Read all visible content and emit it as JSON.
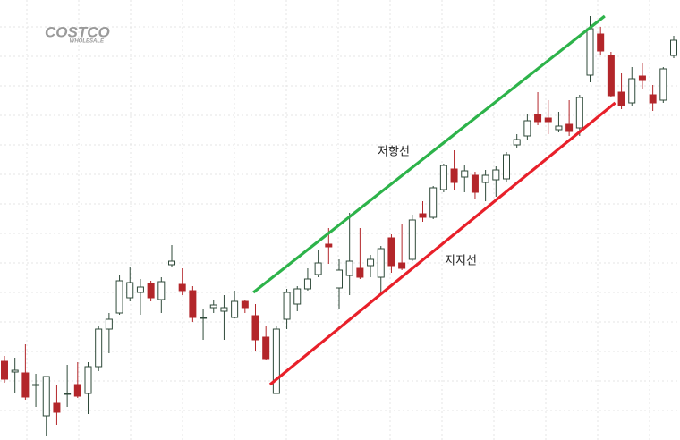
{
  "logo": {
    "name": "COSTCO",
    "tagline": "WHOLESALE"
  },
  "chart_data": {
    "type": "candlestick",
    "up_color": "#ffffff",
    "up_stroke": "#2f4a3a",
    "down_color": "#b3262a",
    "ylim": [
      0,
      492
    ],
    "grid": true,
    "open": [
      88,
      76,
      75,
      61,
      27,
      41,
      51,
      62,
      52,
      82,
      124,
      142,
      159,
      165,
      175,
      157,
      196,
      174,
      167,
      136,
      148,
      144,
      137,
      155,
      139,
      115,
      52,
      135,
      152,
      169,
      185,
      219,
      170,
      184,
      192,
      195,
      182,
      226,
      198,
      202,
      253,
      249,
      280,
      303,
      294,
      296,
      288,
      291,
      292,
      330,
      340,
      364,
      360,
      347,
      353,
      349,
      408,
      454,
      430,
      389,
      377,
      407,
      386,
      380,
      430
    ],
    "high": [
      94,
      92,
      107,
      74,
      71,
      62,
      84,
      87,
      87,
      127,
      142,
      184,
      194,
      180,
      178,
      182,
      218,
      192,
      172,
      147,
      156,
      162,
      167,
      157,
      152,
      127,
      127,
      169,
      172,
      192,
      212,
      237,
      202,
      254,
      237,
      207,
      217,
      230,
      242,
      252,
      267,
      284,
      309,
      324,
      307,
      300,
      302,
      306,
      322,
      342,
      364,
      389,
      380,
      367,
      380,
      386,
      474,
      462,
      434,
      410,
      417,
      422,
      397,
      417,
      452
    ],
    "low": [
      64,
      52,
      45,
      37,
      5,
      17,
      37,
      47,
      29,
      77,
      97,
      140,
      155,
      140,
      155,
      142,
      194,
      162,
      132,
      112,
      142,
      112,
      136,
      142,
      99,
      90,
      52,
      124,
      144,
      167,
      182,
      197,
      147,
      162,
      180,
      182,
      162,
      187,
      190,
      200,
      244,
      247,
      277,
      280,
      277,
      270,
      267,
      272,
      289,
      327,
      336,
      352,
      342,
      344,
      340,
      340,
      400,
      430,
      384,
      370,
      374,
      392,
      368,
      377,
      427
    ],
    "close": [
      68,
      78,
      48,
      62,
      71,
      31,
      52,
      49,
      82,
      124,
      135,
      178,
      176,
      171,
      159,
      177,
      200,
      167,
      137,
      137,
      151,
      148,
      155,
      148,
      112,
      91,
      124,
      165,
      169,
      180,
      198,
      216,
      190,
      200,
      182,
      202,
      214,
      195,
      192,
      246,
      249,
      282,
      307,
      288,
      301,
      277,
      296,
      302,
      319,
      336,
      357,
      356,
      356,
      351,
      345,
      383,
      460,
      435,
      385,
      374,
      404,
      402,
      377,
      415,
      447
    ],
    "lines": [
      {
        "label": "저항선",
        "color": "#2db34a",
        "start": [
          23.8,
          165
        ],
        "end": [
          57.4,
          474
        ]
      },
      {
        "label": "지지선",
        "color": "#e8202a",
        "start": [
          25.4,
          62
        ],
        "end": [
          58.4,
          377
        ]
      }
    ]
  }
}
